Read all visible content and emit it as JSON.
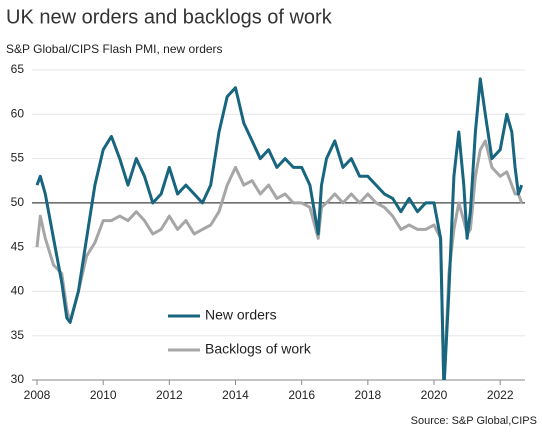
{
  "chart_data": {
    "type": "line",
    "title": "UK new orders and backlogs of work",
    "subtitle": "S&P Global/CIPS Flash PMI, new orders",
    "source": "Source: S&P Global,CIPS",
    "x": [
      2008,
      2008.1,
      2008.25,
      2008.5,
      2008.75,
      2008.9,
      2009,
      2009.25,
      2009.5,
      2009.75,
      2010,
      2010.25,
      2010.5,
      2010.75,
      2011,
      2011.25,
      2011.5,
      2011.75,
      2012,
      2012.25,
      2012.5,
      2012.75,
      2013,
      2013.25,
      2013.5,
      2013.75,
      2014,
      2014.25,
      2014.5,
      2014.75,
      2015,
      2015.25,
      2015.5,
      2015.75,
      2016,
      2016.25,
      2016.5,
      2016.6,
      2016.75,
      2017,
      2017.25,
      2017.5,
      2017.75,
      2018,
      2018.25,
      2018.5,
      2018.75,
      2019,
      2019.25,
      2019.5,
      2019.75,
      2020,
      2020.2,
      2020.3,
      2020.45,
      2020.6,
      2020.75,
      2020.9,
      2021,
      2021.1,
      2021.25,
      2021.4,
      2021.55,
      2021.75,
      2022,
      2022.2,
      2022.35,
      2022.45,
      2022.55,
      2022.65
    ],
    "series": [
      {
        "name": "New orders",
        "color": "#17657e",
        "values": [
          52,
          53,
          51,
          46,
          41,
          37,
          36.5,
          40,
          46,
          52,
          56,
          57.5,
          55,
          52,
          55,
          53,
          50,
          51,
          54,
          51,
          52,
          51,
          50,
          52,
          58,
          62,
          63,
          59,
          57,
          55,
          56,
          54,
          55,
          54,
          54,
          52,
          46.5,
          52,
          55,
          57,
          54,
          55,
          53,
          53,
          52,
          51,
          50.5,
          49,
          50.5,
          49,
          50,
          50,
          46,
          29,
          40,
          53,
          58,
          52,
          46,
          49,
          58,
          64,
          60,
          55,
          56,
          60,
          58,
          54,
          51,
          52
        ]
      },
      {
        "name": "Backlogs of work",
        "color": "#a6a6a6",
        "values": [
          45,
          48.5,
          46,
          43,
          42,
          38,
          36.5,
          40,
          44,
          45.5,
          48,
          48,
          48.5,
          48,
          49,
          48,
          46.5,
          47,
          48.5,
          47,
          48,
          46.5,
          47,
          47.5,
          49,
          52,
          54,
          52,
          52.5,
          51,
          52,
          50.5,
          51,
          50,
          50,
          49.5,
          46,
          49.5,
          50,
          51,
          50,
          51,
          50,
          51,
          50,
          49.5,
          48.5,
          47,
          47.5,
          47,
          47,
          47.5,
          46,
          29,
          42,
          47,
          50,
          48,
          46.5,
          47,
          53,
          56,
          57,
          54,
          53,
          53.5,
          52,
          51,
          51,
          50
        ]
      }
    ],
    "xlim": [
      2008,
      2022.75
    ],
    "xticks": [
      2008,
      2010,
      2012,
      2014,
      2016,
      2018,
      2020,
      2022
    ],
    "ylim": [
      30,
      65
    ],
    "yticks": [
      30,
      35,
      40,
      45,
      50,
      55,
      60,
      65
    ],
    "reference_line": 50,
    "grid": true
  }
}
